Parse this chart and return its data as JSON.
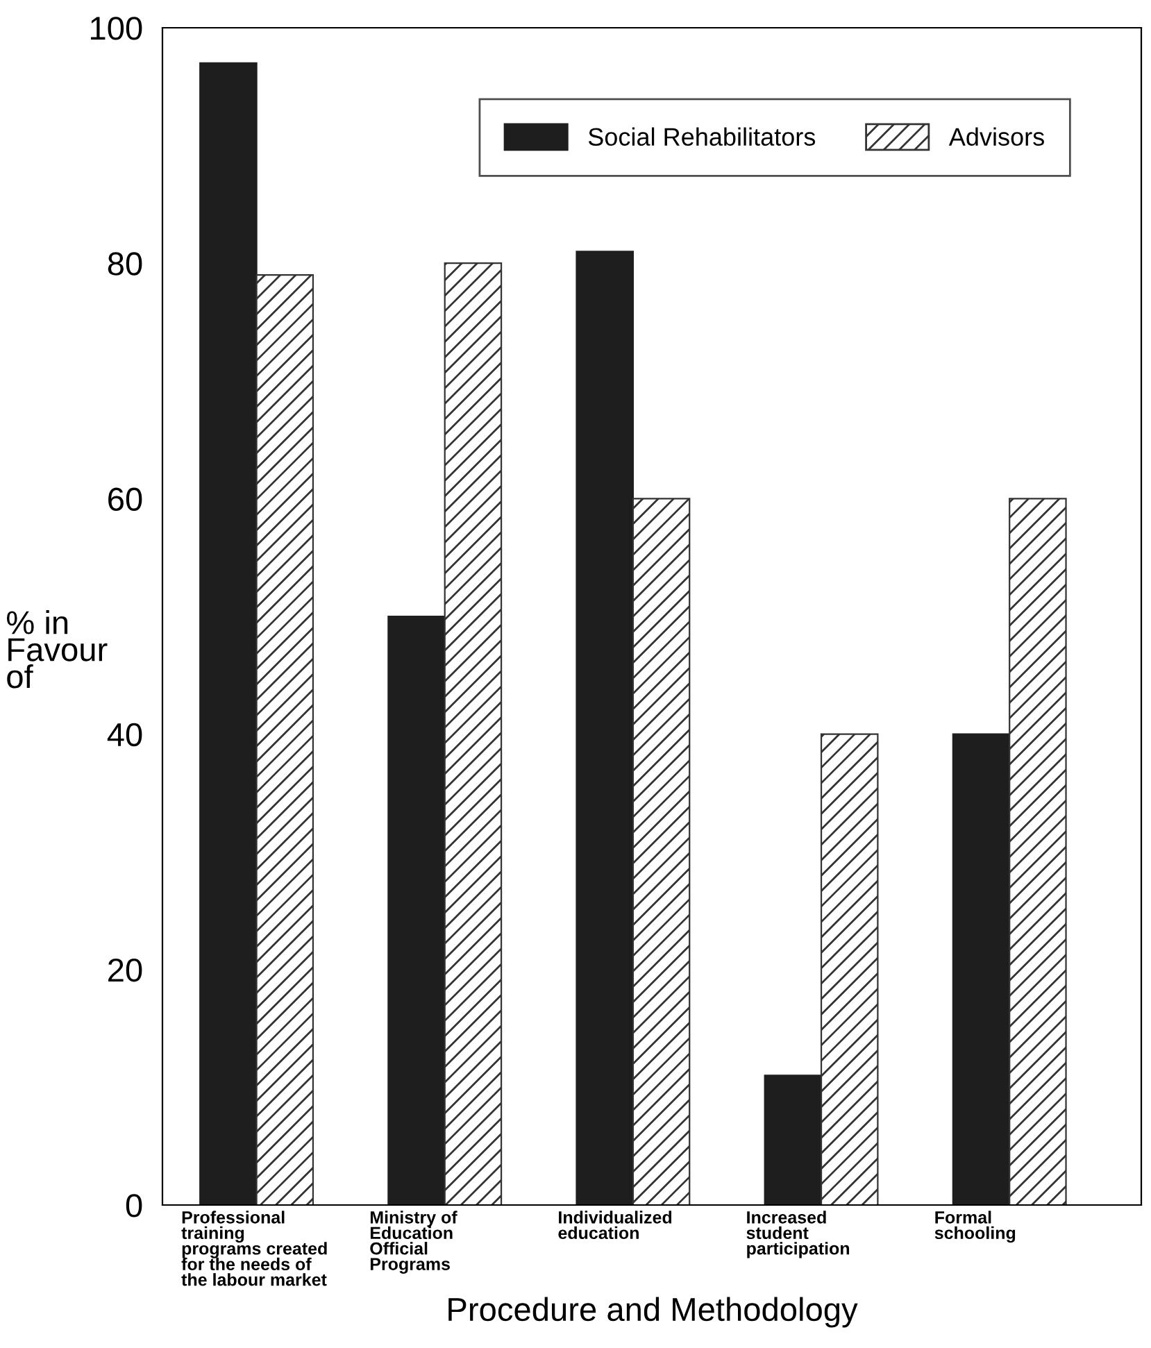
{
  "chart_data": {
    "type": "bar",
    "categories": [
      "Professional\ntraining\nprograms created\nfor the needs of\nthe labour market",
      "Ministry of\nEducation\nOfficial\nPrograms",
      "Individualized\neducation",
      "Increased\nstudent\nparticipation",
      "Formal\nschooling"
    ],
    "series": [
      {
        "name": "Social Rehabilitators",
        "color": "#1e1e1e",
        "values": [
          97,
          50,
          81,
          11,
          40
        ]
      },
      {
        "name": "Advisors",
        "color": "#333333",
        "values": [
          79,
          80,
          60,
          40,
          60
        ]
      }
    ],
    "xlabel": "Procedure and Methodology",
    "ylabel": "% in\nFavour\nof",
    "ylim": [
      0,
      100
    ],
    "yticks": [
      0,
      20,
      40,
      60,
      80,
      100
    ],
    "legend": "top right",
    "grid": false
  }
}
